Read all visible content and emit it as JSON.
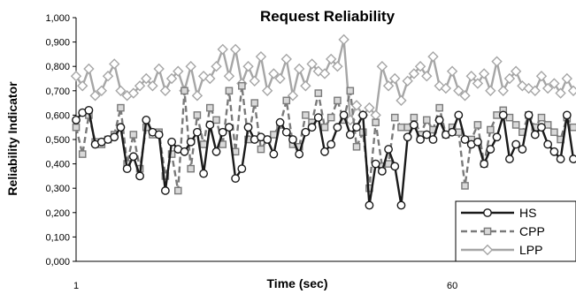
{
  "chart_data": {
    "type": "line",
    "title": "Request Reliability",
    "xlabel": "Time (sec)",
    "ylabel": "Reliability Indicator",
    "ylim": [
      0,
      1
    ],
    "xlim": [
      1,
      79
    ],
    "y_ticks": [
      "0,000",
      "0,100",
      "0,200",
      "0,300",
      "0,400",
      "0,500",
      "0,600",
      "0,700",
      "0,800",
      "0,900",
      "1,000"
    ],
    "x_ticks": [
      {
        "value": 1,
        "label": "1"
      },
      {
        "value": 60,
        "label": "60"
      }
    ],
    "grid": false,
    "legend_position": "bottom-right",
    "series": [
      {
        "name": "HS",
        "style": {
          "color": "#1a1a1a",
          "dash": "solid",
          "marker": "circle"
        },
        "values": [
          0.58,
          0.61,
          0.62,
          0.48,
          0.49,
          0.5,
          0.51,
          0.55,
          0.38,
          0.43,
          0.35,
          0.58,
          0.53,
          0.52,
          0.29,
          0.49,
          0.46,
          0.45,
          0.49,
          0.53,
          0.36,
          0.56,
          0.45,
          0.53,
          0.55,
          0.34,
          0.38,
          0.55,
          0.5,
          0.51,
          0.5,
          0.44,
          0.57,
          0.53,
          0.5,
          0.44,
          0.53,
          0.55,
          0.59,
          0.45,
          0.48,
          0.55,
          0.6,
          0.52,
          0.55,
          0.6,
          0.23,
          0.4,
          0.37,
          0.46,
          0.39,
          0.23,
          0.51,
          0.56,
          0.5,
          0.52,
          0.5,
          0.58,
          0.52,
          0.53,
          0.6,
          0.5,
          0.48,
          0.49,
          0.4,
          0.46,
          0.51,
          0.6,
          0.42,
          0.48,
          0.46,
          0.6,
          0.52,
          0.55,
          0.48,
          0.45,
          0.42,
          0.6,
          0.42
        ]
      },
      {
        "name": "CPP",
        "style": {
          "color": "#7a7a7a",
          "dash": "dashed",
          "marker": "square"
        },
        "values": [
          0.55,
          0.44,
          0.6,
          0.49,
          0.48,
          0.5,
          0.52,
          0.63,
          0.4,
          0.52,
          0.38,
          0.55,
          0.52,
          0.53,
          0.35,
          0.44,
          0.29,
          0.7,
          0.38,
          0.6,
          0.48,
          0.63,
          0.58,
          0.48,
          0.7,
          0.45,
          0.72,
          0.5,
          0.65,
          0.46,
          0.5,
          0.52,
          0.56,
          0.66,
          0.48,
          0.47,
          0.6,
          0.57,
          0.69,
          0.55,
          0.59,
          0.66,
          0.58,
          0.7,
          0.47,
          0.53,
          0.3,
          0.57,
          0.39,
          0.4,
          0.59,
          0.55,
          0.55,
          0.59,
          0.52,
          0.58,
          0.54,
          0.63,
          0.52,
          0.55,
          0.53,
          0.31,
          0.5,
          0.56,
          0.4,
          0.54,
          0.6,
          0.62,
          0.59,
          0.56,
          0.53,
          0.6,
          0.55,
          0.59,
          0.56,
          0.53,
          0.5,
          0.59,
          0.55
        ]
      },
      {
        "name": "LPP",
        "style": {
          "color": "#a6a6a6",
          "dash": "solid",
          "marker": "diamond"
        },
        "values": [
          0.76,
          0.72,
          0.79,
          0.68,
          0.7,
          0.76,
          0.81,
          0.7,
          0.68,
          0.69,
          0.72,
          0.75,
          0.72,
          0.79,
          0.7,
          0.75,
          0.78,
          0.7,
          0.8,
          0.68,
          0.76,
          0.75,
          0.8,
          0.87,
          0.76,
          0.87,
          0.73,
          0.8,
          0.74,
          0.84,
          0.7,
          0.77,
          0.75,
          0.83,
          0.68,
          0.79,
          0.72,
          0.81,
          0.78,
          0.77,
          0.83,
          0.8,
          0.91,
          0.58,
          0.64,
          0.6,
          0.63,
          0.6,
          0.8,
          0.72,
          0.75,
          0.66,
          0.74,
          0.77,
          0.8,
          0.76,
          0.84,
          0.72,
          0.71,
          0.78,
          0.7,
          0.68,
          0.76,
          0.73,
          0.77,
          0.7,
          0.82,
          0.7,
          0.75,
          0.78,
          0.72,
          0.71,
          0.7,
          0.76,
          0.71,
          0.73,
          0.69,
          0.75,
          0.7
        ]
      }
    ]
  }
}
